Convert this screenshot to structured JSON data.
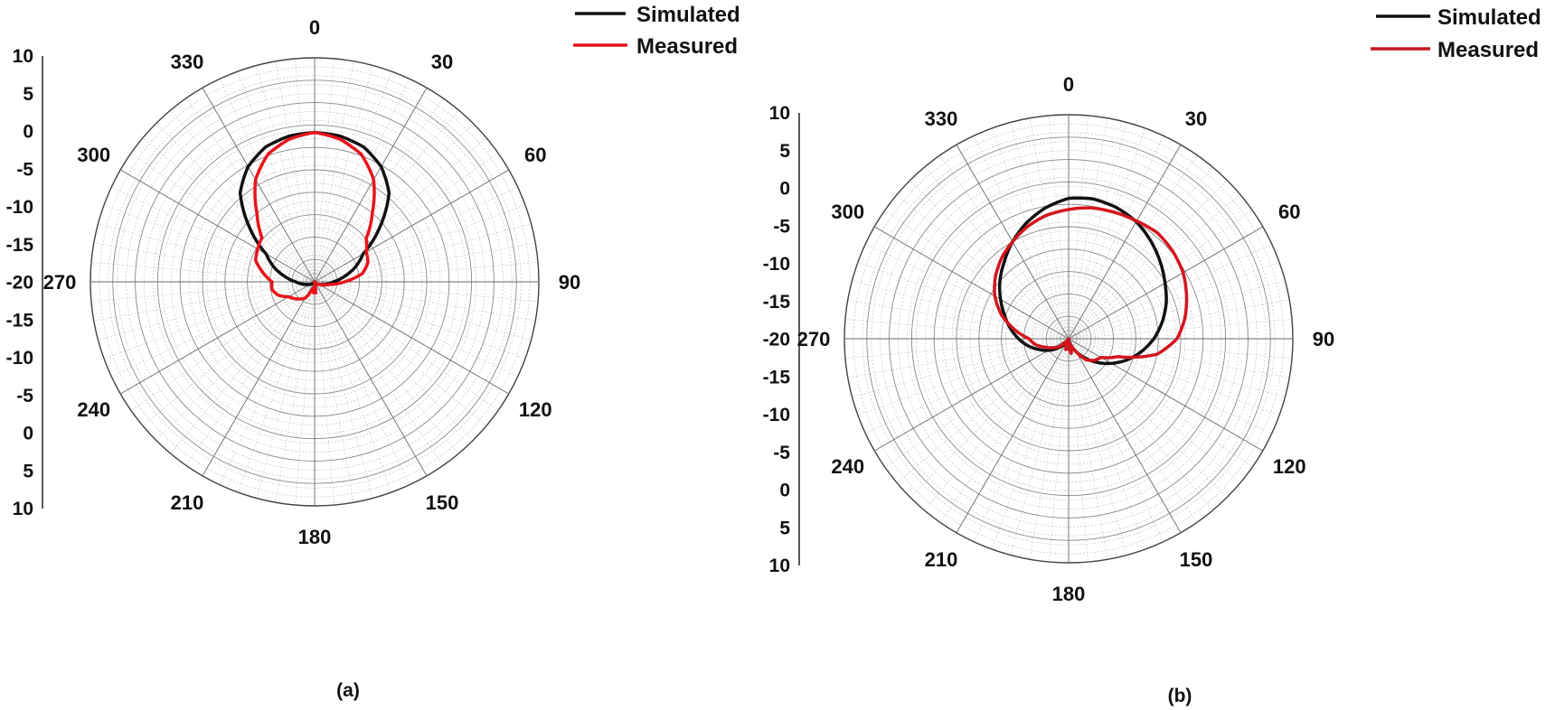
{
  "chart_data": [
    {
      "type": "polar",
      "panel_label": "(a)",
      "legend": {
        "placement": "top-right",
        "entries": [
          {
            "name": "Simulated",
            "color": "#111111"
          },
          {
            "name": "Measured",
            "color": "#e8141b"
          }
        ]
      },
      "angle_labels": [
        "0",
        "30",
        "60",
        "90",
        "120",
        "150",
        "180",
        "210",
        "240",
        "270",
        "300",
        "330"
      ],
      "radial_scale_labels": [
        "10",
        "5",
        "0",
        "-5",
        "-10",
        "-15",
        "-20",
        "-15",
        "-10",
        "-5",
        "0",
        "5",
        "10"
      ],
      "rlim": [
        -20,
        10
      ],
      "grid": true,
      "series": [
        {
          "name": "Simulated",
          "color": "#111111",
          "angles": [
            0,
            10,
            20,
            30,
            40,
            50,
            60,
            70,
            80,
            90,
            100,
            110,
            120,
            130,
            140,
            150,
            160,
            170,
            180,
            190,
            200,
            210,
            220,
            230,
            240,
            250,
            260,
            270,
            280,
            290,
            300,
            310,
            320,
            330,
            340,
            350,
            360
          ],
          "values": [
            0,
            -0.2,
            -0.8,
            -2.2,
            -4.5,
            -8.6,
            -12.5,
            -14.2,
            -16.0,
            -17.5,
            -18.3,
            -19.0,
            -19.3,
            -19.6,
            -19.8,
            -19.9,
            -20,
            -20,
            -20,
            -20,
            -20,
            -19.9,
            -19.8,
            -19.6,
            -19.3,
            -19.0,
            -18.3,
            -17.5,
            -16.0,
            -14.2,
            -12.5,
            -8.6,
            -4.5,
            -2.2,
            -0.8,
            -0.2,
            0
          ]
        },
        {
          "name": "Measured",
          "color": "#e8141b",
          "angles": [
            0,
            10,
            20,
            30,
            40,
            50,
            60,
            70,
            80,
            90,
            100,
            110,
            120,
            130,
            140,
            150,
            160,
            170,
            175,
            180,
            185,
            190,
            200,
            210,
            220,
            230,
            240,
            250,
            260,
            270,
            280,
            290,
            300,
            310,
            320,
            330,
            340,
            350,
            360
          ],
          "values": [
            0,
            -0.6,
            -1.8,
            -4.2,
            -8.0,
            -11.0,
            -12.0,
            -12.4,
            -13.5,
            -16.0,
            -18.0,
            -18.8,
            -19.3,
            -19.6,
            -19.8,
            -19.9,
            -20,
            -19.5,
            -18.5,
            -20,
            -18.5,
            -19.2,
            -18.8,
            -17.5,
            -17.0,
            -16.5,
            -16.0,
            -14.8,
            -14.2,
            -14.3,
            -13.0,
            -11.6,
            -11.2,
            -10.8,
            -8.0,
            -4.2,
            -1.8,
            -0.6,
            0
          ]
        }
      ]
    },
    {
      "type": "polar",
      "panel_label": "(b)",
      "legend": {
        "placement": "top-right",
        "entries": [
          {
            "name": "Simulated",
            "color": "#111111"
          },
          {
            "name": "Measured",
            "color": "#c8141b"
          }
        ]
      },
      "angle_labels": [
        "0",
        "30",
        "60",
        "90",
        "120",
        "150",
        "180",
        "210",
        "240",
        "270",
        "300",
        "330"
      ],
      "radial_scale_labels": [
        "10",
        "5",
        "0",
        "-5",
        "-10",
        "-15",
        "-20",
        "-15",
        "-10",
        "-5",
        "0",
        "5",
        "10"
      ],
      "rlim": [
        -20,
        10
      ],
      "grid": true,
      "series": [
        {
          "name": "Simulated",
          "color": "#111111",
          "angles": [
            0,
            10,
            20,
            30,
            40,
            50,
            60,
            70,
            80,
            90,
            100,
            110,
            120,
            130,
            140,
            150,
            160,
            170,
            180,
            190,
            200,
            210,
            220,
            230,
            240,
            250,
            260,
            270,
            280,
            290,
            300,
            310,
            320,
            330,
            340,
            350,
            360
          ],
          "values": [
            -1.2,
            -1.0,
            -1.3,
            -1.9,
            -2.9,
            -4.0,
            -5.1,
            -6.1,
            -7.3,
            -8.6,
            -10.1,
            -11.7,
            -13.4,
            -15.1,
            -16.7,
            -18.0,
            -19.0,
            -19.7,
            -20,
            -20,
            -19.8,
            -19.5,
            -18.9,
            -18.0,
            -16.9,
            -15.8,
            -14.5,
            -13.3,
            -12.1,
            -10.9,
            -9.5,
            -8.0,
            -6.6,
            -5.0,
            -3.5,
            -2.2,
            -1.2
          ]
        },
        {
          "name": "Measured",
          "color": "#d4151c",
          "angles": [
            0,
            10,
            20,
            30,
            40,
            50,
            60,
            70,
            80,
            90,
            100,
            110,
            120,
            130,
            140,
            150,
            160,
            170,
            175,
            180,
            185,
            190,
            195,
            200,
            210,
            220,
            230,
            240,
            250,
            260,
            270,
            280,
            290,
            300,
            310,
            320,
            330,
            340,
            350,
            360
          ],
          "values": [
            -2.7,
            -2.2,
            -2.0,
            -1.8,
            -1.5,
            -1.8,
            -2.3,
            -3.2,
            -4.2,
            -5.5,
            -8.0,
            -13.0,
            -15.0,
            -15.5,
            -16.3,
            -18.0,
            -19.2,
            -18.0,
            -18.9,
            -20,
            -18.6,
            -19.0,
            -18.5,
            -19.3,
            -19.5,
            -19.7,
            -18.3,
            -17.6,
            -16.7,
            -15.5,
            -14.7,
            -12.6,
            -10.4,
            -8.6,
            -7.2,
            -6.0,
            -5.0,
            -4.0,
            -3.2,
            -2.7
          ]
        }
      ]
    }
  ]
}
